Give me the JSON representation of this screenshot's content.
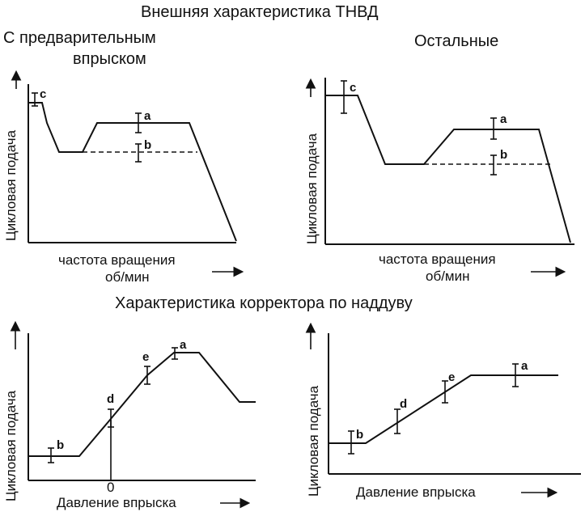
{
  "titles": {
    "top": "Внешняя характеристика ТНВД",
    "bottom": "Характеристика корректора по наддуву"
  },
  "panels": {
    "top_left": {
      "heading_line1": "С предварительным",
      "heading_line2": "впрыском",
      "ylabel": "Цикловая подача",
      "xlabel_line1": "частота вращения",
      "xlabel_line2": "об/мин",
      "points": [
        "c",
        "a",
        "b"
      ]
    },
    "top_right": {
      "heading": "Остальные",
      "ylabel": "Цикловая подача",
      "xlabel_line1": "частота вращения",
      "xlabel_line2": "об/мин",
      "points": [
        "c",
        "a",
        "b"
      ]
    },
    "bottom_left": {
      "ylabel": "Цикловая подача",
      "xlabel": "Давление впрыска",
      "zero_label": "0",
      "points": [
        "b",
        "d",
        "e",
        "a"
      ]
    },
    "bottom_right": {
      "ylabel": "Цикловая подача",
      "xlabel": "Давление впрыска",
      "points": [
        "b",
        "d",
        "e",
        "a"
      ]
    }
  }
}
